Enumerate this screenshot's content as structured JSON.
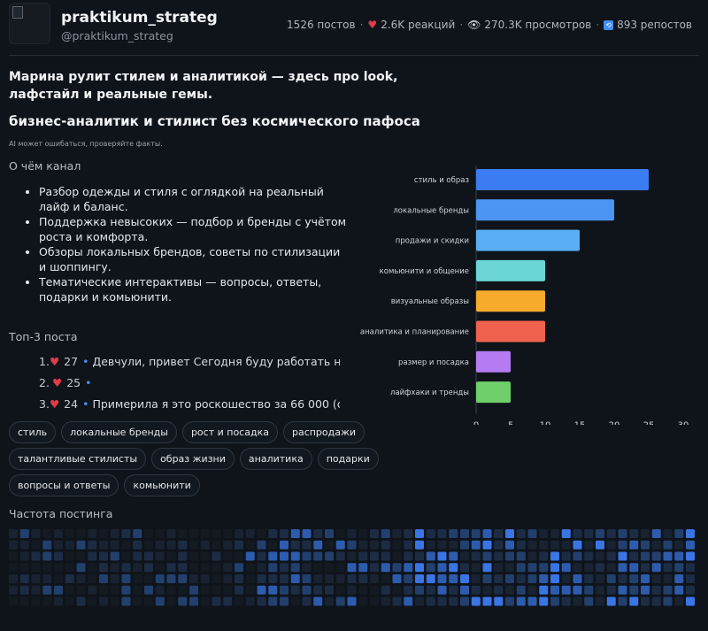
{
  "header": {
    "title": "praktikum_strateg",
    "handle": "@praktikum_strateg",
    "stats": {
      "posts": "1526 постов",
      "reactions": "2.6K реакций",
      "views": "270.3K просмотров",
      "reposts": "893 репостов"
    }
  },
  "headline": "Марина рулит стилем и аналитикой — здесь про look, лафстайл и реальные гемы.",
  "subhead": "бизнес-аналитик и стилист без космического пафоса",
  "disclaimer": "AI может ошибаться, проверяйте факты.",
  "about": {
    "title": "О чём канал",
    "items": [
      "Разбор одежды и стиля с оглядкой на реальный лайф и баланс.",
      "Поддержка невысоких — подбор и бренды с учётом роста и комфорта.",
      "Обзоры локальных брендов, советы по стилизации и шоппингу.",
      "Тематические интерактивы — вопросы, ответы, подарки и комьюнити."
    ]
  },
  "top_posts": {
    "title": "Топ-3 поста",
    "items": [
      {
        "num": "1.",
        "count": "27",
        "text": "Девчули, привет Сегодня буду работать н"
      },
      {
        "num": "2.",
        "count": "25",
        "text": ""
      },
      {
        "num": "3.",
        "count": "24",
        "text": "Примерила я это роскошество за 66 000 (с"
      }
    ]
  },
  "tags": [
    [
      "стиль",
      "локальные бренды",
      "рост и посадка",
      "распродажи"
    ],
    [
      "талантливые стилисты",
      "образ жизни",
      "аналитика",
      "подарки"
    ],
    [
      "вопросы и ответы",
      "комьюнити"
    ]
  ],
  "frequency_title": "Частота постинга",
  "colors": {
    "accent": "#3f8ff0",
    "heart": "#e03b4a"
  },
  "chart_data": {
    "type": "bar",
    "orientation": "horizontal",
    "categories": [
      "стиль и образ",
      "локальные бренды",
      "продажи и скидки",
      "комьюнити и общение",
      "визуальные образы",
      "аналитика и планирование",
      "размер и посадка",
      "лайфхаки и тренды"
    ],
    "values": [
      25,
      20,
      15,
      10,
      10,
      10,
      5,
      5
    ],
    "colors": [
      "#3b7cf2",
      "#4d95f3",
      "#5aaef3",
      "#6cd6d6",
      "#f7ab2d",
      "#f0624d",
      "#b57bf2",
      "#6fcf6a"
    ],
    "xticks": [
      "0",
      "5",
      "10",
      "15",
      "20",
      "25",
      "30"
    ],
    "xlim": [
      0,
      30
    ],
    "grid": false,
    "legend": "none"
  }
}
